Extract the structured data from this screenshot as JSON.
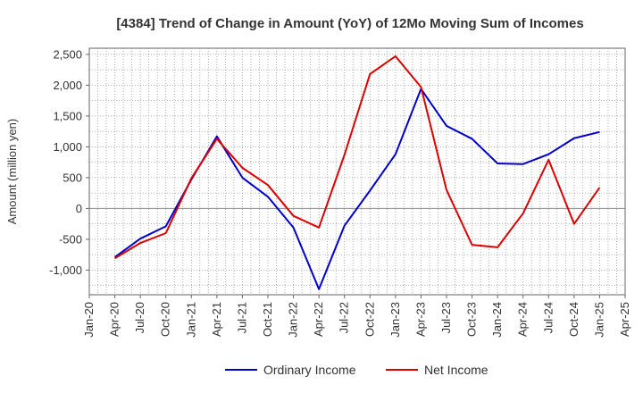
{
  "chart_data": {
    "type": "line",
    "title": "[4384]  Trend of Change in Amount (YoY) of 12Mo Moving Sum of Incomes",
    "xlabel": "",
    "ylabel": "Amount (million yen)",
    "x_ticks": [
      "Jan-20",
      "Apr-20",
      "Jul-20",
      "Oct-20",
      "Jan-21",
      "Apr-21",
      "Jul-21",
      "Oct-21",
      "Jan-22",
      "Apr-22",
      "Jul-22",
      "Oct-22",
      "Jan-23",
      "Apr-23",
      "Jul-23",
      "Oct-23",
      "Jan-24",
      "Apr-24",
      "Jul-24",
      "Oct-24",
      "Jan-25",
      "Apr-25"
    ],
    "x": [
      "Apr-20",
      "Jul-20",
      "Oct-20",
      "Jan-21",
      "Apr-21",
      "Jul-21",
      "Oct-21",
      "Jan-22",
      "Apr-22",
      "Jul-22",
      "Oct-22",
      "Jan-23",
      "Apr-23",
      "Jul-23",
      "Oct-23",
      "Jan-24",
      "Apr-24",
      "Jul-24",
      "Oct-24",
      "Jan-25"
    ],
    "y_ticks": [
      -1000,
      -500,
      0,
      500,
      1000,
      1500,
      2000,
      2500
    ],
    "y_tick_labels": [
      "-1,000",
      "-500",
      "0",
      "500",
      "1,000",
      "1,500",
      "2,000",
      "2,500"
    ],
    "ylim": [
      -1400,
      2600
    ],
    "grid": true,
    "legend_position": "bottom",
    "series": [
      {
        "name": "Ordinary Income",
        "color": "#0000cc",
        "values": [
          -790,
          -490,
          -290,
          470,
          1170,
          500,
          190,
          -310,
          -1310,
          -280,
          290,
          880,
          1940,
          1340,
          1130,
          730,
          720,
          880,
          1140,
          1240
        ]
      },
      {
        "name": "Net Income",
        "color": "#dd0000",
        "values": [
          -810,
          -560,
          -400,
          490,
          1130,
          660,
          380,
          -120,
          -310,
          870,
          2180,
          2470,
          1970,
          300,
          -590,
          -630,
          -80,
          790,
          -250,
          340
        ]
      }
    ]
  }
}
